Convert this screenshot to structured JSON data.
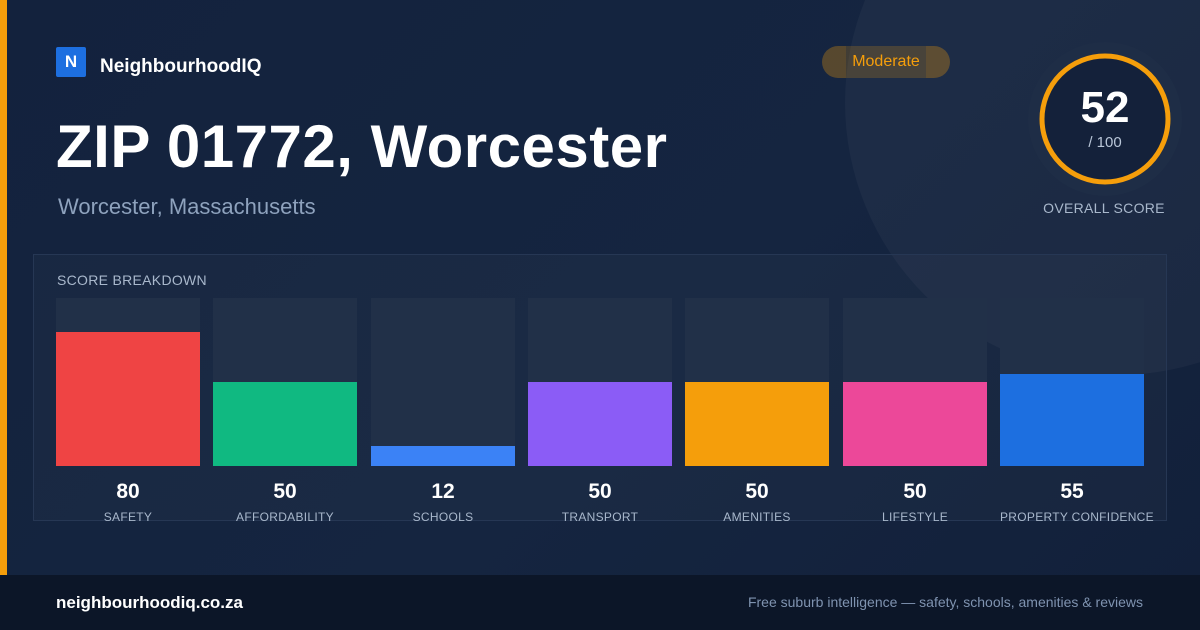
{
  "brand": {
    "logo_letter": "N",
    "name": "NeighbourhoodIQ"
  },
  "badge": {
    "label": "Moderate",
    "color": "#f59e0b"
  },
  "header": {
    "title": "ZIP 01772, Worcester",
    "subtitle": "Worcester, Massachusetts"
  },
  "overall": {
    "score": "52",
    "max_label": "/ 100",
    "label": "OVERALL SCORE",
    "fraction": 0.52,
    "ring_color": "#f59e0b"
  },
  "breakdown": {
    "title": "SCORE BREAKDOWN",
    "items": [
      {
        "label": "SAFETY",
        "value": "80",
        "color": "#ef4444"
      },
      {
        "label": "AFFORDABILITY",
        "value": "50",
        "color": "#10b981"
      },
      {
        "label": "SCHOOLS",
        "value": "12",
        "color": "#3b82f6"
      },
      {
        "label": "TRANSPORT",
        "value": "50",
        "color": "#8b5cf6"
      },
      {
        "label": "AMENITIES",
        "value": "50",
        "color": "#f59e0b"
      },
      {
        "label": "LIFESTYLE",
        "value": "50",
        "color": "#ec4899"
      },
      {
        "label": "PROPERTY CONFIDENCE",
        "value": "55",
        "color": "#1d6fe0"
      }
    ]
  },
  "footer": {
    "site": "neighbourhoodiq.co.za",
    "tagline": "Free suburb intelligence — safety, schools, amenities & reviews"
  }
}
